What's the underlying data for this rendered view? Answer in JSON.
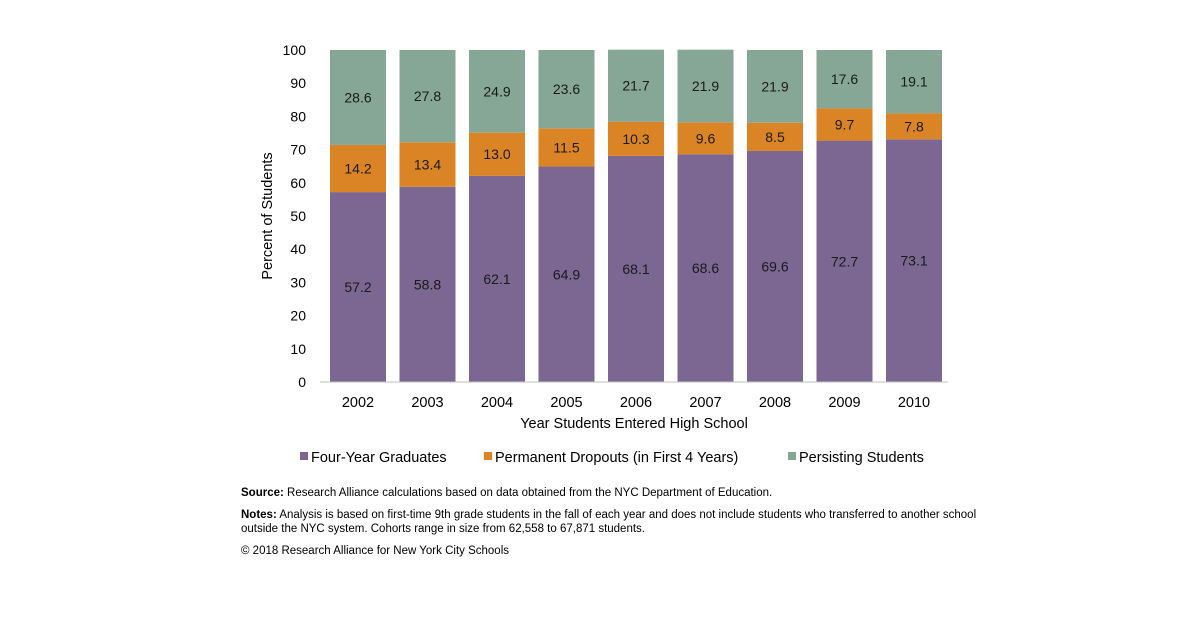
{
  "chart_data": {
    "type": "bar",
    "stacked": true,
    "categories": [
      "2002",
      "2003",
      "2004",
      "2005",
      "2006",
      "2007",
      "2008",
      "2009",
      "2010"
    ],
    "series": [
      {
        "name": "Four-Year Graduates",
        "color": "#7B6791",
        "values": [
          57.2,
          58.8,
          62.1,
          64.9,
          68.1,
          68.6,
          69.6,
          72.7,
          73.1
        ]
      },
      {
        "name": "Permanent Dropouts (in First 4 Years)",
        "color": "#DB8425",
        "values": [
          14.2,
          13.4,
          13.0,
          11.5,
          10.3,
          9.6,
          8.5,
          9.7,
          7.8
        ]
      },
      {
        "name": "Persisting Students",
        "color": "#86A696",
        "values": [
          28.6,
          27.8,
          24.9,
          23.6,
          21.7,
          21.9,
          21.9,
          17.6,
          19.1
        ]
      }
    ],
    "value_labels": [
      [
        "57.2",
        "58.8",
        "62.1",
        "64.9",
        "68.1",
        "68.6",
        "69.6",
        "72.7",
        "73.1"
      ],
      [
        "14.2",
        "13.4",
        "13.0",
        "11.5",
        "10.3",
        "9.6",
        "8.5",
        "9.7",
        "7.8"
      ],
      [
        "28.6",
        "27.8",
        "24.9",
        "23.6",
        "21.7",
        "21.9",
        "21.9",
        "17.6",
        "19.1"
      ]
    ],
    "xlabel": "Year Students Entered High School",
    "ylabel": "Percent of Students",
    "ylim": [
      0,
      100
    ],
    "yticks": [
      0,
      10,
      20,
      30,
      40,
      50,
      60,
      70,
      80,
      90,
      100
    ],
    "grid": false,
    "legend_position": "bottom"
  },
  "notes": {
    "source_label": "Source:",
    "source_text": " Research Alliance calculations based on data obtained from the NYC Department of Education.",
    "notes_label": "Notes:",
    "notes_text": " Analysis is based on first-time 9th grade students in the fall of each year and does not include students who transferred to another school outside the NYC system. Cohorts range in size from 62,558 to 67,871 students.",
    "copyright": "© 2018 Research Alliance for New York City Schools"
  }
}
